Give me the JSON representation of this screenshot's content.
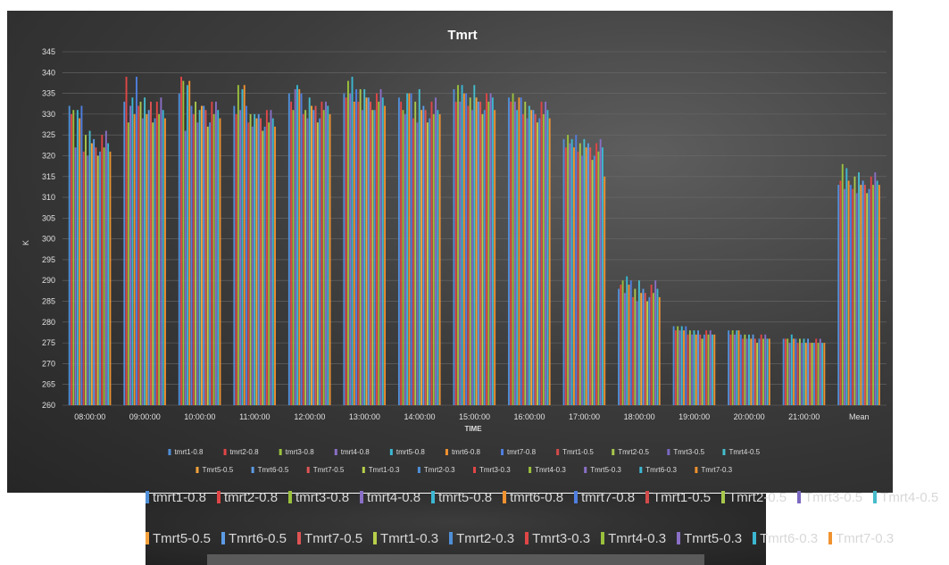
{
  "chart_data": {
    "type": "bar",
    "title": "Tmrt",
    "xlabel": "TIME",
    "ylabel": "K",
    "ylim": [
      260,
      345
    ],
    "yticks": [
      260,
      265,
      270,
      275,
      280,
      285,
      290,
      295,
      300,
      305,
      310,
      315,
      320,
      325,
      330,
      335,
      340,
      345
    ],
    "grid": true,
    "legend_position": "bottom",
    "categories": [
      "08:00:00",
      "09:00:00",
      "10:00:00",
      "11:00:00",
      "12:00:00",
      "13:00:00",
      "14:00:00",
      "15:00:00",
      "16:00:00",
      "17:00:00",
      "18:00:00",
      "19:00:00",
      "20:00:00",
      "21:00:00",
      "Mean"
    ],
    "colors": [
      "#4f8fd8",
      "#e04646",
      "#9ac13c",
      "#8a6fc6",
      "#3cb7d2",
      "#f0922f",
      "#4f7fe0",
      "#d24a4a",
      "#a8c84c",
      "#7a68c0",
      "#46bccc",
      "#f5a23c",
      "#5d9be6",
      "#e05454",
      "#b7cf4a"
    ],
    "series": [
      {
        "name": "tmrt1-0.8",
        "values": [
          332,
          333,
          335,
          332,
          335,
          335,
          334,
          336,
          334,
          324,
          288,
          279,
          278,
          276,
          313
        ]
      },
      {
        "name": "tmrt2-0.8",
        "values": [
          330,
          339,
          339,
          330,
          333,
          334,
          333,
          333,
          333,
          322,
          289,
          278,
          277,
          276,
          314
        ]
      },
      {
        "name": "tmrt3-0.8",
        "values": [
          331,
          328,
          338,
          337,
          331,
          338,
          331,
          337,
          335,
          325,
          290,
          279,
          278,
          276,
          318
        ]
      },
      {
        "name": "tmrt4-0.8",
        "values": [
          322,
          332,
          326,
          331,
          336,
          335,
          330,
          333,
          333,
          323,
          287,
          278,
          277,
          275,
          312
        ]
      },
      {
        "name": "tmrt5-0.8",
        "values": [
          331,
          334,
          337,
          336,
          337,
          339,
          335,
          337,
          331,
          324,
          291,
          279,
          278,
          277,
          317
        ]
      },
      {
        "name": "tmrt6-0.8",
        "values": [
          329,
          330,
          338,
          337,
          336,
          333,
          335,
          335,
          334,
          322,
          289,
          278,
          278,
          276,
          314
        ]
      },
      {
        "name": "tmrt7-0.8",
        "values": [
          332,
          339,
          332,
          332,
          335,
          336,
          335,
          335,
          334,
          325,
          290,
          279,
          277,
          276,
          313
        ]
      },
      {
        "name": "Tmrt1-0.5",
        "values": [
          321,
          332,
          330,
          328,
          330,
          333,
          329,
          332,
          330,
          321,
          286,
          277,
          276,
          275,
          312
        ]
      },
      {
        "name": "Tmrt2-0.5",
        "values": [
          325,
          333,
          333,
          330,
          331,
          336,
          333,
          334,
          333,
          323,
          288,
          278,
          277,
          276,
          315
        ]
      },
      {
        "name": "Tmrt3-0.5",
        "values": [
          320,
          329,
          328,
          327,
          329,
          331,
          328,
          331,
          329,
          320,
          285,
          277,
          276,
          275,
          311
        ]
      },
      {
        "name": "Tmrt4-0.5",
        "values": [
          326,
          334,
          331,
          330,
          334,
          336,
          336,
          337,
          332,
          324,
          290,
          278,
          277,
          276,
          316
        ]
      },
      {
        "name": "Tmrt5-0.5",
        "values": [
          323,
          330,
          332,
          329,
          332,
          334,
          331,
          334,
          331,
          322,
          287,
          277,
          276,
          275,
          313
        ]
      },
      {
        "name": "Tmrt6-0.5",
        "values": [
          324,
          331,
          332,
          330,
          331,
          334,
          332,
          333,
          331,
          323,
          288,
          278,
          277,
          276,
          314
        ]
      },
      {
        "name": "Tmrt7-0.5",
        "values": [
          322,
          333,
          331,
          329,
          332,
          333,
          331,
          333,
          330,
          322,
          287,
          277,
          276,
          275,
          313
        ]
      },
      {
        "name": "Tmrt1-0.3",
        "values": [
          320,
          328,
          327,
          326,
          328,
          331,
          328,
          330,
          328,
          319,
          285,
          276,
          275,
          275,
          311
        ]
      },
      {
        "name": "Tmrt2-0.3",
        "values": [
          321,
          329,
          328,
          327,
          329,
          331,
          329,
          331,
          329,
          320,
          286,
          277,
          276,
          275,
          312
        ]
      },
      {
        "name": "Tmrt3-0.3",
        "values": [
          325,
          333,
          333,
          331,
          333,
          335,
          333,
          335,
          333,
          323,
          289,
          278,
          277,
          276,
          315
        ]
      },
      {
        "name": "Tmrt4-0.3",
        "values": [
          322,
          330,
          330,
          328,
          331,
          333,
          330,
          333,
          330,
          321,
          287,
          277,
          276,
          275,
          313
        ]
      },
      {
        "name": "Tmrt5-0.3",
        "values": [
          326,
          334,
          333,
          331,
          333,
          336,
          334,
          335,
          333,
          324,
          290,
          278,
          277,
          276,
          316
        ]
      },
      {
        "name": "Tmrt6-0.3",
        "values": [
          323,
          331,
          331,
          329,
          332,
          334,
          331,
          334,
          331,
          322,
          288,
          277,
          276,
          275,
          314
        ]
      },
      {
        "name": "Tmrt7-0.3",
        "values": [
          321,
          329,
          329,
          327,
          330,
          332,
          330,
          331,
          329,
          315,
          286,
          277,
          276,
          275,
          313
        ]
      }
    ]
  },
  "zoom_legend": {
    "row1": [
      "tmrt1-0.8",
      "tmrt2-0.8",
      "tmrt3-0.8",
      "tmrt4-0.8",
      "tmrt5-0.8",
      "tmrt6-0.8",
      "tmrt7-0.8",
      "Tmrt1-0.5",
      "Tmrt2-0.5",
      "Tmrt3-0.5",
      "Tmrt4-0.5"
    ],
    "row2": [
      "Tmrt5-0.5",
      "Tmrt6-0.5",
      "Tmrt7-0.5",
      "Tmrt1-0.3",
      "Tmrt2-0.3",
      "Tmrt3-0.3",
      "Tmrt4-0.3",
      "Tmrt5-0.3",
      "Tmrt6-0.3",
      "Tmrt7-0.3"
    ]
  }
}
